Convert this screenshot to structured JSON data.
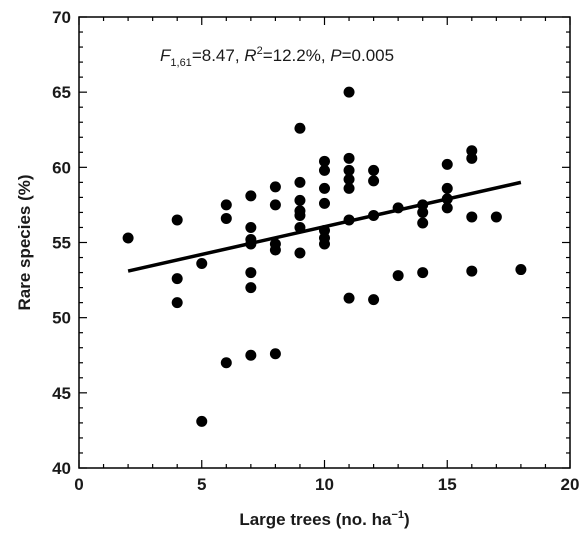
{
  "chart_data": {
    "type": "scatter",
    "xlabel_main": "Large trees (no. ha",
    "xlabel_sup": "−1",
    "xlabel_close": ")",
    "ylabel": "Rare species (%)",
    "xlim": [
      0,
      20
    ],
    "ylim": [
      40,
      70
    ],
    "x_ticks": [
      "0",
      "5",
      "10",
      "15",
      "20"
    ],
    "y_ticks": [
      "40",
      "45",
      "50",
      "55",
      "60",
      "65",
      "70"
    ],
    "grid": false,
    "annotation": {
      "f_letter": "F",
      "f_sub": "1,61",
      "f_value": "=8.47, ",
      "r_letter": "R",
      "r_sup": "2",
      "r_value": "=12.2%, ",
      "p_letter": "P",
      "p_value": "=0.005"
    },
    "regression_line": {
      "x": [
        2,
        18
      ],
      "y": [
        53.1,
        59.0
      ]
    },
    "points": [
      [
        2,
        55.3
      ],
      [
        4,
        56.5
      ],
      [
        4,
        52.6
      ],
      [
        4,
        51.0
      ],
      [
        5,
        53.6
      ],
      [
        5,
        43.1
      ],
      [
        6,
        57.5
      ],
      [
        6,
        56.6
      ],
      [
        6,
        47.0
      ],
      [
        7,
        58.1
      ],
      [
        7,
        56.0
      ],
      [
        7,
        55.2
      ],
      [
        7,
        54.9
      ],
      [
        7,
        53.0
      ],
      [
        7,
        52.0
      ],
      [
        7,
        47.5
      ],
      [
        8,
        58.7
      ],
      [
        8,
        57.5
      ],
      [
        8,
        54.9
      ],
      [
        8,
        54.5
      ],
      [
        8,
        47.6
      ],
      [
        9,
        62.6
      ],
      [
        9,
        59.0
      ],
      [
        9,
        57.8
      ],
      [
        9,
        57.1
      ],
      [
        9,
        56.8
      ],
      [
        9,
        56.0
      ],
      [
        9,
        54.3
      ],
      [
        10,
        60.4
      ],
      [
        10,
        59.8
      ],
      [
        10,
        58.6
      ],
      [
        10,
        57.6
      ],
      [
        10,
        55.8
      ],
      [
        10,
        55.3
      ],
      [
        10,
        54.9
      ],
      [
        11,
        65.0
      ],
      [
        11,
        60.6
      ],
      [
        11,
        59.8
      ],
      [
        11,
        59.2
      ],
      [
        11,
        58.6
      ],
      [
        11,
        56.5
      ],
      [
        11,
        51.3
      ],
      [
        12,
        59.8
      ],
      [
        12,
        59.1
      ],
      [
        12,
        56.8
      ],
      [
        12,
        51.2
      ],
      [
        13,
        57.3
      ],
      [
        13,
        52.8
      ],
      [
        14,
        57.5
      ],
      [
        14,
        57.0
      ],
      [
        14,
        56.3
      ],
      [
        14,
        53.0
      ],
      [
        15,
        60.2
      ],
      [
        15,
        58.6
      ],
      [
        15,
        57.9
      ],
      [
        15,
        57.3
      ],
      [
        16,
        61.1
      ],
      [
        16,
        60.6
      ],
      [
        16,
        56.7
      ],
      [
        16,
        53.1
      ],
      [
        17,
        56.7
      ],
      [
        18,
        53.2
      ]
    ]
  }
}
